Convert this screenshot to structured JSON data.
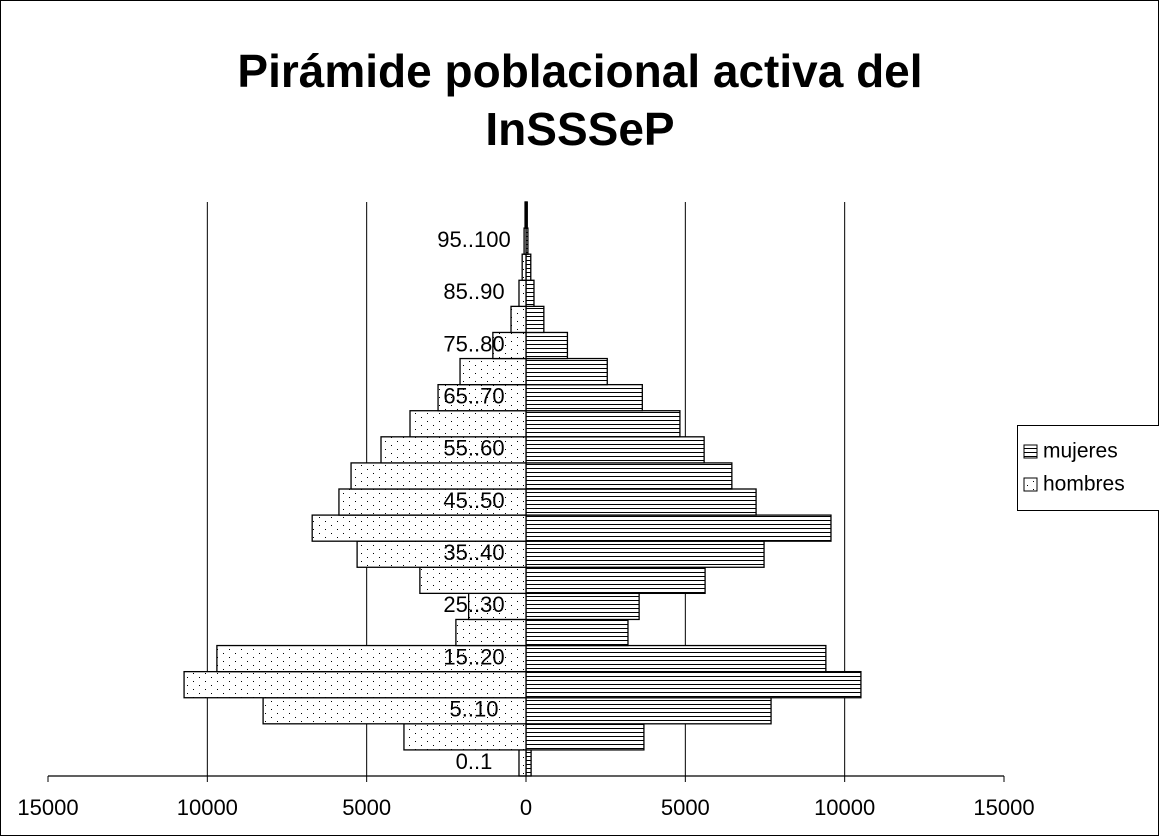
{
  "chart_data": {
    "type": "pyramid",
    "title": [
      "Pirámide poblacional activa del",
      "InSSSeP"
    ],
    "categories": [
      "0..1",
      null,
      "5..10",
      null,
      "15..20",
      null,
      "25..30",
      null,
      "35..40",
      null,
      "45..50",
      null,
      "55..60",
      null,
      "65..70",
      null,
      "75..80",
      null,
      "85..90",
      null,
      "95..100",
      null
    ],
    "series": [
      {
        "name": "mujeres",
        "color": "#000000",
        "pattern": "horizontal",
        "values": [
          160,
          3700,
          7690,
          10510,
          9410,
          3200,
          3550,
          5620,
          7470,
          9570,
          7220,
          6460,
          5590,
          4830,
          3650,
          2550,
          1300,
          560,
          250,
          150,
          60,
          40
        ]
      },
      {
        "name": "hombres",
        "color": "#000000",
        "pattern": "dots",
        "values": [
          -220,
          -3830,
          -8250,
          -10730,
          -9700,
          -2200,
          -1800,
          -3330,
          -5300,
          -6710,
          -5870,
          -5490,
          -4550,
          -3640,
          -2760,
          -2070,
          -1040,
          -470,
          -220,
          -120,
          -60,
          -30
        ]
      }
    ],
    "xlim": [
      -15000,
      15000
    ],
    "xticks": [
      {
        "value": -15000,
        "label": "15000"
      },
      {
        "value": -10000,
        "label": "10000"
      },
      {
        "value": -5000,
        "label": "5000"
      },
      0,
      5000,
      10000,
      15000
    ],
    "grid": true,
    "legend": "right"
  }
}
